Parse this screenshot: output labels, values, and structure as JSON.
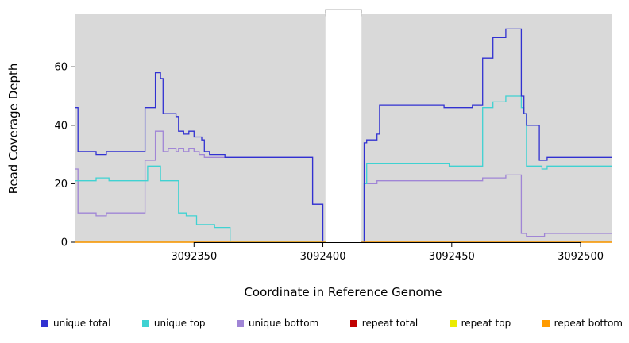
{
  "chart_data": {
    "type": "line",
    "step": true,
    "title": "",
    "xlabel": "Coordinate in Reference Genome",
    "ylabel": "Read Coverage Depth",
    "panel_bg": "#d9d9d9",
    "page_bg": "#ffffff",
    "grid": false,
    "xlim": [
      3092304,
      3092512
    ],
    "ylim": [
      0,
      78
    ],
    "x_ticks": [
      3092350,
      3092400,
      3092450,
      3092500
    ],
    "y_ticks": [
      0,
      20,
      40,
      60
    ],
    "gap_x": [
      3092401,
      3092415
    ],
    "legend_position": "bottom",
    "legend": [
      {
        "label": "unique total",
        "color": "#3131d1"
      },
      {
        "label": "unique top",
        "color": "#3fd2d2"
      },
      {
        "label": "unique bottom",
        "color": "#a085d6"
      },
      {
        "label": "repeat total",
        "color": "#c00000"
      },
      {
        "label": "repeat top",
        "color": "#ebeb00"
      },
      {
        "label": "repeat bottom",
        "color": "#ff9b00"
      }
    ],
    "series": [
      {
        "name": "repeat total",
        "color": "#c00000",
        "segments": [
          [
            [
              3092304,
              0
            ],
            [
              3092401,
              0
            ]
          ],
          [
            [
              3092415,
              0
            ],
            [
              3092512,
              0
            ]
          ]
        ]
      },
      {
        "name": "repeat top",
        "color": "#ebeb00",
        "segments": [
          [
            [
              3092304,
              0
            ],
            [
              3092401,
              0
            ]
          ],
          [
            [
              3092415,
              0
            ],
            [
              3092512,
              0
            ]
          ]
        ]
      },
      {
        "name": "unique bottom",
        "color": "#a085d6",
        "segments": [
          [
            [
              3092304,
              25
            ],
            [
              3092305,
              10
            ],
            [
              3092311,
              10
            ],
            [
              3092312,
              9
            ],
            [
              3092316,
              10
            ],
            [
              3092330,
              10
            ],
            [
              3092331,
              28
            ],
            [
              3092334,
              28
            ],
            [
              3092335,
              38
            ],
            [
              3092337,
              38
            ],
            [
              3092338,
              31
            ],
            [
              3092340,
              32
            ],
            [
              3092343,
              31
            ],
            [
              3092344,
              32
            ],
            [
              3092346,
              31
            ],
            [
              3092348,
              32
            ],
            [
              3092350,
              31
            ],
            [
              3092352,
              30
            ],
            [
              3092354,
              29
            ],
            [
              3092395,
              29
            ],
            [
              3092396,
              13
            ],
            [
              3092400,
              13
            ],
            [
              3092400,
              0
            ]
          ],
          [
            [
              3092415,
              0
            ],
            [
              3092416,
              20
            ],
            [
              3092420,
              20
            ],
            [
              3092421,
              21
            ],
            [
              3092461,
              21
            ],
            [
              3092462,
              22
            ],
            [
              3092470,
              22
            ],
            [
              3092471,
              23
            ],
            [
              3092476,
              23
            ],
            [
              3092477,
              3
            ],
            [
              3092479,
              2
            ],
            [
              3092484,
              2
            ],
            [
              3092486,
              3
            ],
            [
              3092512,
              3
            ]
          ]
        ]
      },
      {
        "name": "unique top",
        "color": "#3fd2d2",
        "segments": [
          [
            [
              3092304,
              21
            ],
            [
              3092311,
              21
            ],
            [
              3092312,
              22
            ],
            [
              3092316,
              22
            ],
            [
              3092317,
              21
            ],
            [
              3092331,
              21
            ],
            [
              3092332,
              26
            ],
            [
              3092336,
              26
            ],
            [
              3092337,
              21
            ],
            [
              3092343,
              21
            ],
            [
              3092344,
              10
            ],
            [
              3092346,
              10
            ],
            [
              3092347,
              9
            ],
            [
              3092350,
              9
            ],
            [
              3092351,
              6
            ],
            [
              3092357,
              6
            ],
            [
              3092358,
              5
            ],
            [
              3092363,
              5
            ],
            [
              3092364,
              0
            ],
            [
              3092401,
              0
            ]
          ],
          [
            [
              3092415,
              0
            ],
            [
              3092416,
              20
            ],
            [
              3092417,
              27
            ],
            [
              3092448,
              27
            ],
            [
              3092449,
              26
            ],
            [
              3092461,
              26
            ],
            [
              3092462,
              46
            ],
            [
              3092465,
              46
            ],
            [
              3092466,
              48
            ],
            [
              3092470,
              48
            ],
            [
              3092471,
              50
            ],
            [
              3092476,
              50
            ],
            [
              3092477,
              46
            ],
            [
              3092478,
              44
            ],
            [
              3092479,
              26
            ],
            [
              3092485,
              25
            ],
            [
              3092487,
              26
            ],
            [
              3092512,
              26
            ]
          ]
        ]
      },
      {
        "name": "unique total",
        "color": "#3131d1",
        "segments": [
          [
            [
              3092304,
              46
            ],
            [
              3092305,
              31
            ],
            [
              3092311,
              31
            ],
            [
              3092312,
              30
            ],
            [
              3092316,
              31
            ],
            [
              3092330,
              31
            ],
            [
              3092331,
              46
            ],
            [
              3092334,
              46
            ],
            [
              3092335,
              58
            ],
            [
              3092337,
              56
            ],
            [
              3092338,
              44
            ],
            [
              3092343,
              43
            ],
            [
              3092344,
              38
            ],
            [
              3092346,
              37
            ],
            [
              3092348,
              38
            ],
            [
              3092350,
              36
            ],
            [
              3092352,
              36
            ],
            [
              3092353,
              35
            ],
            [
              3092354,
              31
            ],
            [
              3092356,
              30
            ],
            [
              3092362,
              29
            ],
            [
              3092395,
              29
            ],
            [
              3092396,
              13
            ],
            [
              3092400,
              13
            ],
            [
              3092400,
              0
            ]
          ],
          [
            [
              3092415,
              0
            ],
            [
              3092416,
              34
            ],
            [
              3092417,
              35
            ],
            [
              3092420,
              35
            ],
            [
              3092421,
              37
            ],
            [
              3092422,
              47
            ],
            [
              3092446,
              47
            ],
            [
              3092447,
              46
            ],
            [
              3092457,
              46
            ],
            [
              3092458,
              47
            ],
            [
              3092461,
              47
            ],
            [
              3092462,
              63
            ],
            [
              3092465,
              63
            ],
            [
              3092466,
              70
            ],
            [
              3092470,
              70
            ],
            [
              3092471,
              73
            ],
            [
              3092476,
              73
            ],
            [
              3092477,
              50
            ],
            [
              3092478,
              44
            ],
            [
              3092479,
              40
            ],
            [
              3092483,
              40
            ],
            [
              3092484,
              28
            ],
            [
              3092486,
              28
            ],
            [
              3092487,
              29
            ],
            [
              3092512,
              29
            ]
          ]
        ]
      },
      {
        "name": "repeat bottom",
        "color": "#ff9b00",
        "segments": [
          [
            [
              3092304,
              0
            ],
            [
              3092401,
              0
            ]
          ],
          [
            [
              3092415,
              0
            ],
            [
              3092512,
              0
            ]
          ]
        ]
      }
    ]
  }
}
